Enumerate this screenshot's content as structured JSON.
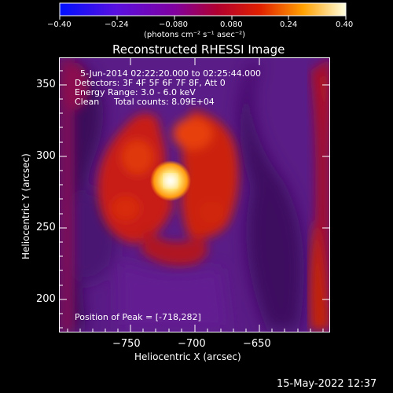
{
  "colorbar": {
    "ticks": [
      "−0.40",
      "−0.24",
      "−0.080",
      "0.080",
      "0.24",
      "0.40"
    ],
    "unit_label": "(photons cm⁻² s⁻¹ asec⁻²)",
    "colors": [
      "#0000ff",
      "#6a00d8",
      "#8a008a",
      "#c00020",
      "#ff5a00",
      "#ffd000",
      "#ffffff"
    ]
  },
  "plot": {
    "title": "Reconstructed RHESSI Image",
    "xlabel": "Heliocentric X (arcsec)",
    "ylabel": "Heliocentric Y (arcsec)",
    "x_ticks": [
      "−750",
      "−700",
      "−650"
    ],
    "y_ticks": [
      "350",
      "300",
      "250",
      "200"
    ],
    "annotations": {
      "time_range": "5-Jun-2014 02:22:20.000 to 02:25:44.000",
      "detectors": "Detectors: 3F 4F 5F 6F 7F 8F, Att 0",
      "energy_range": "Energy Range: 3.0 - 6.0 keV",
      "clean_label": "Clean",
      "total_counts": "Total counts: 8.09E+04",
      "peak_position": "Position of Peak = [-718,282]"
    }
  },
  "footer": {
    "timestamp": "15-May-2022 12:37"
  }
}
